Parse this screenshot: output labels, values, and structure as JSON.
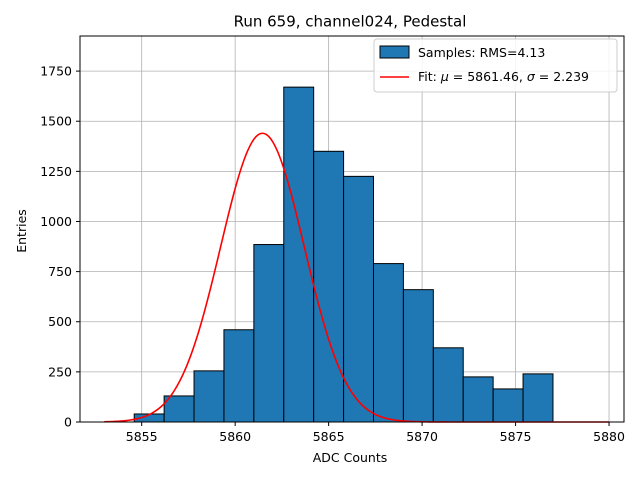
{
  "chart_data": {
    "type": "bar",
    "title": "Run 659, channel024, Pedestal",
    "xlabel": "ADC Counts",
    "ylabel": "Entries",
    "xlim": [
      5851.7,
      5880.8
    ],
    "ylim": [
      0,
      1925
    ],
    "xticks": [
      5855,
      5860,
      5865,
      5870,
      5875,
      5880
    ],
    "yticks": [
      0,
      250,
      500,
      750,
      1000,
      1250,
      1500,
      1750
    ],
    "grid": true,
    "legend_position": "top-right",
    "histogram": {
      "name": "Samples: RMS=4.13",
      "color": "#1f77b4",
      "edge_color": "#000000",
      "bins": [
        {
          "left": 5853.0,
          "right": 5854.6,
          "count": 0
        },
        {
          "left": 5854.6,
          "right": 5856.2,
          "count": 40
        },
        {
          "left": 5856.2,
          "right": 5857.8,
          "count": 130
        },
        {
          "left": 5857.8,
          "right": 5859.4,
          "count": 255
        },
        {
          "left": 5859.4,
          "right": 5861.0,
          "count": 460
        },
        {
          "left": 5861.0,
          "right": 5862.6,
          "count": 885
        },
        {
          "left": 5862.6,
          "right": 5864.2,
          "count": 1670
        },
        {
          "left": 5864.2,
          "right": 5865.8,
          "count": 1350
        },
        {
          "left": 5865.8,
          "right": 5867.4,
          "count": 1225
        },
        {
          "left": 5867.4,
          "right": 5869.0,
          "count": 790
        },
        {
          "left": 5869.0,
          "right": 5870.6,
          "count": 660
        },
        {
          "left": 5870.6,
          "right": 5872.2,
          "count": 370
        },
        {
          "left": 5872.2,
          "right": 5873.8,
          "count": 225
        },
        {
          "left": 5873.8,
          "right": 5875.4,
          "count": 165
        },
        {
          "left": 5875.4,
          "right": 5877.0,
          "count": 240
        }
      ]
    },
    "fit": {
      "name": "Fit: μ = 5861.46, σ = 2.239",
      "color": "#ff0000",
      "mu": 5861.46,
      "sigma": 2.239,
      "amplitude": 1440,
      "x_range": [
        5853.0,
        5880.0
      ]
    },
    "legend": {
      "label_samples_prefix": "Samples: RMS=4.13",
      "label_fit_prefix": "Fit: ",
      "label_fit_mu_symbol": "μ",
      "label_fit_mu_value": " = 5861.46, ",
      "label_fit_sigma_symbol": "σ",
      "label_fit_sigma_value": " = 2.239"
    }
  }
}
